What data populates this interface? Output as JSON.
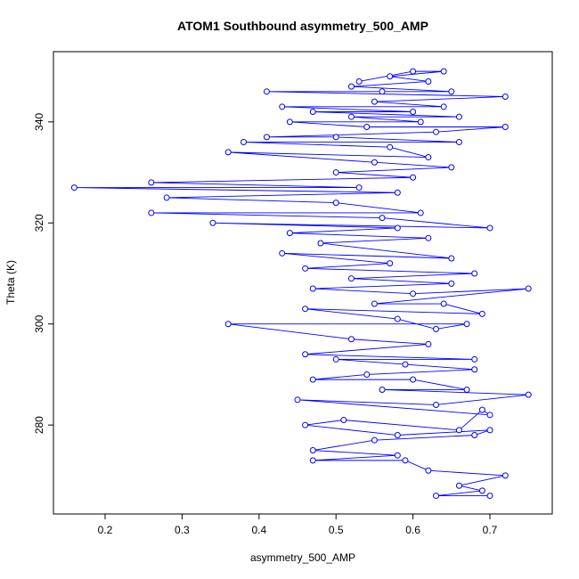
{
  "chart_data": {
    "type": "line",
    "title": "ATOM1 Southbound asymmetry_500_AMP",
    "x_label": "asymmetry_500_AMP",
    "y_label": "Theta (K)",
    "color": "#0000ff",
    "markers": "open-circle",
    "x": [
      0.7,
      0.63,
      0.69,
      0.66,
      0.72,
      0.62,
      0.59,
      0.47,
      0.58,
      0.47,
      0.55,
      0.68,
      0.7,
      0.58,
      0.46,
      0.51,
      0.66,
      0.69,
      0.7,
      0.45,
      0.63,
      0.75,
      0.56,
      0.67,
      0.6,
      0.47,
      0.54,
      0.68,
      0.59,
      0.5,
      0.68,
      0.46,
      0.62,
      0.52,
      0.36,
      0.67,
      0.63,
      0.58,
      0.46,
      0.69,
      0.64,
      0.55,
      0.75,
      0.6,
      0.47,
      0.65,
      0.52,
      0.68,
      0.46,
      0.57,
      0.43,
      0.65,
      0.48,
      0.62,
      0.44,
      0.58,
      0.34,
      0.7,
      0.56,
      0.26,
      0.61,
      0.5,
      0.28,
      0.58,
      0.16,
      0.53,
      0.26,
      0.6,
      0.5,
      0.65,
      0.55,
      0.36,
      0.62,
      0.57,
      0.38,
      0.66,
      0.5,
      0.41,
      0.63,
      0.72,
      0.54,
      0.44,
      0.61,
      0.52,
      0.66,
      0.47,
      0.6,
      0.43,
      0.64,
      0.55,
      0.72,
      0.41,
      0.56,
      0.65,
      0.52,
      0.62,
      0.57,
      0.64,
      0.6,
      0.53
    ],
    "values": [
      266,
      266,
      267,
      268,
      270,
      271,
      273,
      273,
      274,
      275,
      277,
      278,
      279,
      278,
      280,
      281,
      279,
      283,
      282,
      285,
      284,
      286,
      287,
      287,
      289,
      289,
      290,
      291,
      292,
      293,
      293,
      294,
      296,
      297,
      300,
      300,
      299,
      301,
      303,
      302,
      304,
      304,
      307,
      306,
      307,
      308,
      309,
      310,
      311,
      312,
      314,
      313,
      316,
      317,
      318,
      319,
      320,
      319,
      321,
      322,
      322,
      324,
      325,
      326,
      327,
      327,
      328,
      329,
      330,
      331,
      332,
      334,
      333,
      335,
      336,
      336,
      337,
      337,
      338,
      339,
      339,
      340,
      340,
      341,
      341,
      342,
      342,
      343,
      343,
      344,
      345,
      346,
      346,
      346,
      347,
      348,
      349,
      350,
      350,
      348
    ],
    "xlim": [
      0.1329,
      0.781
    ],
    "ylim": [
      262.4,
      353.9
    ],
    "xticks": [
      0.2,
      0.3,
      0.4,
      0.5,
      0.6,
      0.7
    ],
    "yticks": [
      280,
      300,
      320,
      340
    ]
  }
}
